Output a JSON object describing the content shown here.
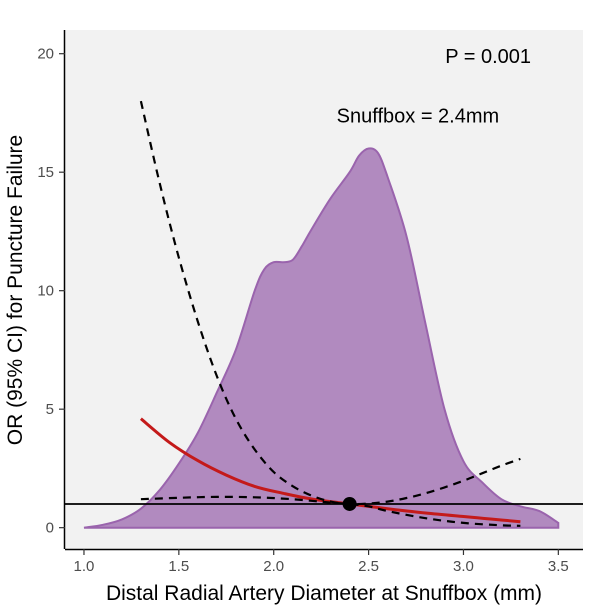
{
  "chart_data": {
    "type": "line",
    "xlabel": "Distal Radial Artery Diameter at Snuffbox (mm)",
    "ylabel": "OR (95% CI) for Puncture Failure",
    "xlim": [
      0.9,
      3.63
    ],
    "ylim": [
      -0.9,
      21
    ],
    "x_ticks": [
      1.0,
      1.5,
      2.0,
      2.5,
      3.0,
      3.5
    ],
    "x_tick_labels": [
      "1.0",
      "1.5",
      "2.0",
      "2.5",
      "3.0",
      "3.5"
    ],
    "y_ticks": [
      0,
      5,
      10,
      15,
      20
    ],
    "y_tick_labels": [
      "0",
      "5",
      "10",
      "15",
      "20"
    ],
    "grid": false,
    "annotations": [
      {
        "text": "P = 0.001",
        "x": 3.13,
        "y": 19.6
      },
      {
        "text": "Snuffbox = 2.4mm",
        "x": 2.76,
        "y": 17.1
      }
    ],
    "reference_line": {
      "y": 1
    },
    "reference_point": {
      "x": 2.4,
      "y": 1
    },
    "density": {
      "x": [
        1.0,
        1.1,
        1.2,
        1.3,
        1.4,
        1.5,
        1.6,
        1.7,
        1.8,
        1.9,
        1.95,
        2.0,
        2.05,
        2.1,
        2.15,
        2.2,
        2.3,
        2.4,
        2.45,
        2.5,
        2.55,
        2.6,
        2.7,
        2.8,
        2.9,
        3.0,
        3.1,
        3.2,
        3.3,
        3.4,
        3.5
      ],
      "values": [
        0.0,
        0.12,
        0.35,
        0.8,
        1.6,
        2.7,
        4.0,
        5.7,
        7.5,
        10.0,
        10.9,
        11.2,
        11.2,
        11.3,
        11.9,
        12.6,
        13.9,
        15.0,
        15.7,
        16.0,
        15.8,
        14.8,
        12.3,
        8.6,
        5.0,
        2.8,
        1.9,
        1.2,
        0.9,
        0.7,
        0.2
      ],
      "color": "#b18abf",
      "edge_color": "#9a64ad"
    },
    "series": [
      {
        "x": [
          1.3,
          1.45,
          1.6,
          1.75,
          1.9,
          2.05,
          2.2,
          2.4,
          2.6,
          2.8,
          3.0,
          3.15,
          3.3
        ],
        "values": [
          4.6,
          3.6,
          2.83,
          2.22,
          1.74,
          1.45,
          1.21,
          1.0,
          0.8,
          0.62,
          0.47,
          0.36,
          0.25
        ],
        "style": "solid",
        "color": "#c41a1a"
      },
      {
        "x": [
          1.3,
          1.4,
          1.5,
          1.6,
          1.7,
          1.8,
          1.9,
          2.0,
          2.1,
          2.2,
          2.3,
          2.4,
          2.5,
          2.6,
          2.7,
          2.8,
          2.9,
          3.0,
          3.1,
          3.2,
          3.3
        ],
        "values": [
          18.0,
          14.5,
          11.4,
          8.7,
          6.4,
          4.6,
          3.3,
          2.35,
          1.75,
          1.35,
          1.1,
          1.0,
          1.02,
          1.1,
          1.25,
          1.45,
          1.7,
          1.98,
          2.3,
          2.62,
          2.9
        ],
        "style": "dashed",
        "color": "#000000"
      },
      {
        "x": [
          1.3,
          1.5,
          1.7,
          1.9,
          2.1,
          2.3,
          2.4,
          2.5,
          2.6,
          2.8,
          3.0,
          3.2,
          3.3
        ],
        "values": [
          1.2,
          1.26,
          1.3,
          1.28,
          1.2,
          1.06,
          1.0,
          0.9,
          0.7,
          0.4,
          0.2,
          0.1,
          0.08
        ],
        "style": "dashed",
        "color": "#000000"
      }
    ]
  }
}
